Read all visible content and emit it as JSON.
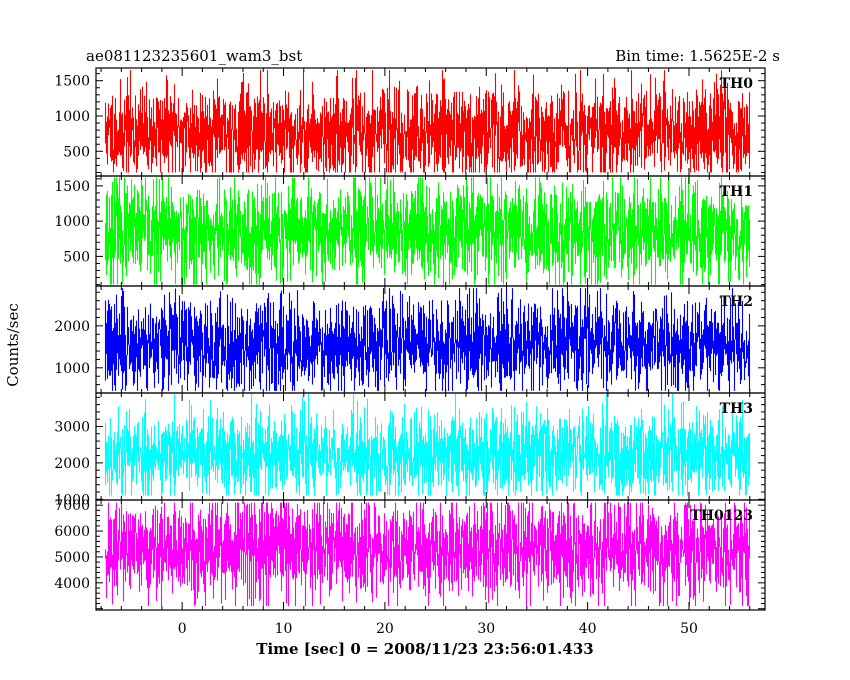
{
  "header": {
    "title": "ae081123235601_wam3_bst",
    "bin_time": "Bin time: 1.5625E-2 s"
  },
  "chart_data": {
    "type": "line",
    "xlabel": "Time [sec] 0 = 2008/11/23 23:56:01.433",
    "ylabel": "Counts/sec",
    "xlim": [
      -8.5,
      57.5
    ],
    "x_ticks": [
      0,
      10,
      20,
      30,
      40,
      50
    ],
    "x_tick_labels": [
      "0",
      "10",
      "20",
      "30",
      "40",
      "50"
    ],
    "data_x_range": [
      -7.6,
      55.9
    ],
    "panels": [
      {
        "name": "TH0",
        "color": "#ff0000",
        "ylim": [
          150,
          1680
        ],
        "y_ticks": [
          500,
          1000,
          1500
        ],
        "y_tick_labels": [
          "500",
          "1000",
          "1500"
        ],
        "mean": 760,
        "min": 200,
        "max": 1650,
        "spread": 330,
        "seed": 11
      },
      {
        "name": "TH1",
        "color": "#00ff00",
        "ylim": [
          80,
          1640
        ],
        "y_ticks": [
          500,
          1000,
          1500
        ],
        "y_tick_labels": [
          "500",
          "1000",
          "1500"
        ],
        "mean": 850,
        "min": 100,
        "max": 1620,
        "spread": 360,
        "seed": 23
      },
      {
        "name": "TH2",
        "color": "#0000ff",
        "ylim": [
          400,
          2950
        ],
        "y_ticks": [
          1000,
          2000
        ],
        "y_tick_labels": [
          "1000",
          "2000"
        ],
        "mean": 1550,
        "min": 450,
        "max": 2900,
        "spread": 560,
        "seed": 37
      },
      {
        "name": "TH3",
        "color": "#00ffff",
        "ylim": [
          980,
          3920
        ],
        "y_ticks": [
          1000,
          2000,
          3000
        ],
        "y_tick_labels": [
          "1000",
          "2000",
          "3000"
        ],
        "mean": 2250,
        "min": 1100,
        "max": 3900,
        "spread": 600,
        "seed": 53
      },
      {
        "name": "TH0123",
        "color": "#ff00ff",
        "ylim": [
          2950,
          7200
        ],
        "y_ticks": [
          4000,
          5000,
          6000,
          7000
        ],
        "y_tick_labels": [
          "4000",
          "5000",
          "6000",
          "7000"
        ],
        "mean": 5300,
        "min": 3100,
        "max": 7100,
        "spread": 1000,
        "seed": 71
      }
    ]
  }
}
